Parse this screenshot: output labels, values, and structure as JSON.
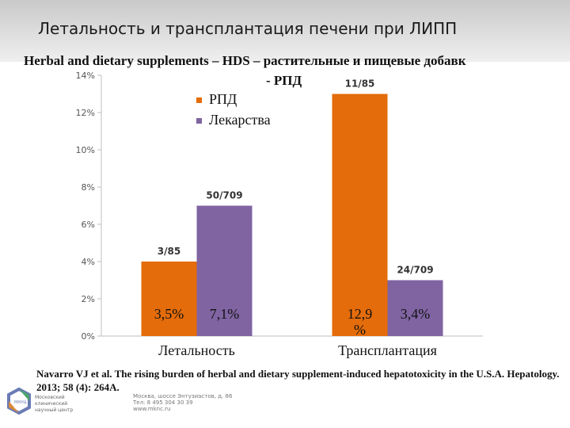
{
  "slide_title": "Летальность и трансплантация печени при ЛИПП",
  "subtitle": {
    "line1": "Herbal and dietary supplements – HDS – растительные и пищевые добавк",
    "line2": "- РПД"
  },
  "citation": "Navarro VJ et al. The rising burden of herbal and dietary supplement-induced hepatotoxicity in the U.S.A. Hepatology. 2013; 58 (4): 264A.",
  "footer": {
    "logo_text": [
      "Московский",
      "клинический",
      "научный центр"
    ],
    "address": [
      "Москва, шоссе Энтузиастов, д. 86",
      "Тел: 8 495 304 30 39",
      "www.mknc.ru"
    ]
  },
  "colors": {
    "rpd": "#e46c0a",
    "drugs": "#8064a2"
  },
  "chart_data": {
    "type": "bar",
    "categories": [
      "Летальность",
      "Трансплантация"
    ],
    "series": [
      {
        "name": "РПД",
        "values": [
          4.0,
          13.0
        ],
        "data_labels": [
          "3/85",
          "11/85"
        ],
        "inner_labels": [
          "3,5%",
          "12,9 %"
        ]
      },
      {
        "name": "Лекарства",
        "values": [
          7.0,
          3.0
        ],
        "data_labels": [
          "50/709",
          "24/709"
        ],
        "inner_labels": [
          "7,1%",
          "3,4%"
        ]
      }
    ],
    "yticks": [
      "0%",
      "2%",
      "4%",
      "6%",
      "8%",
      "10%",
      "12%",
      "14%"
    ],
    "ylim": [
      0,
      14
    ],
    "grid": false,
    "legend_position": "top-center"
  }
}
